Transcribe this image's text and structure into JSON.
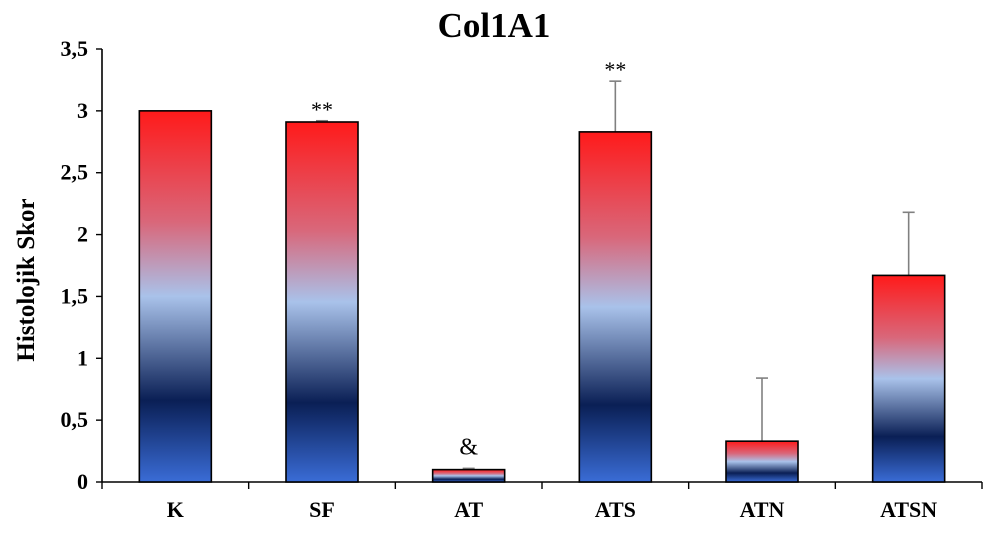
{
  "chart_data": {
    "type": "bar",
    "title": "Col1A1",
    "xlabel": "",
    "ylabel": "Histolojik Skor",
    "ylim": [
      0,
      3.5
    ],
    "yticks": [
      0,
      0.5,
      1,
      1.5,
      2,
      2.5,
      3,
      3.5
    ],
    "ytick_labels": [
      "0",
      "0,5",
      "1",
      "1,5",
      "2",
      "2,5",
      "3",
      "3,5"
    ],
    "categories": [
      "K",
      "SF",
      "AT",
      "ATS",
      "ATN",
      "ATSN"
    ],
    "values": [
      3.0,
      2.91,
      0.1,
      2.83,
      0.33,
      1.67
    ],
    "errors": [
      0.0,
      0.01,
      0.01,
      0.41,
      0.51,
      0.51
    ],
    "annotations": [
      "",
      "**",
      "&",
      "**",
      "",
      ""
    ],
    "grid": false,
    "legend": "none",
    "gradient_colors": {
      "top": "#ff1a1a",
      "upper_mid": "#d9677a",
      "mid": "#a9c2ea",
      "dark": "#0a1f55",
      "bottom": "#3a6cd6"
    },
    "bar_outline_color": "#000000",
    "errorbar_color": "#808080"
  }
}
